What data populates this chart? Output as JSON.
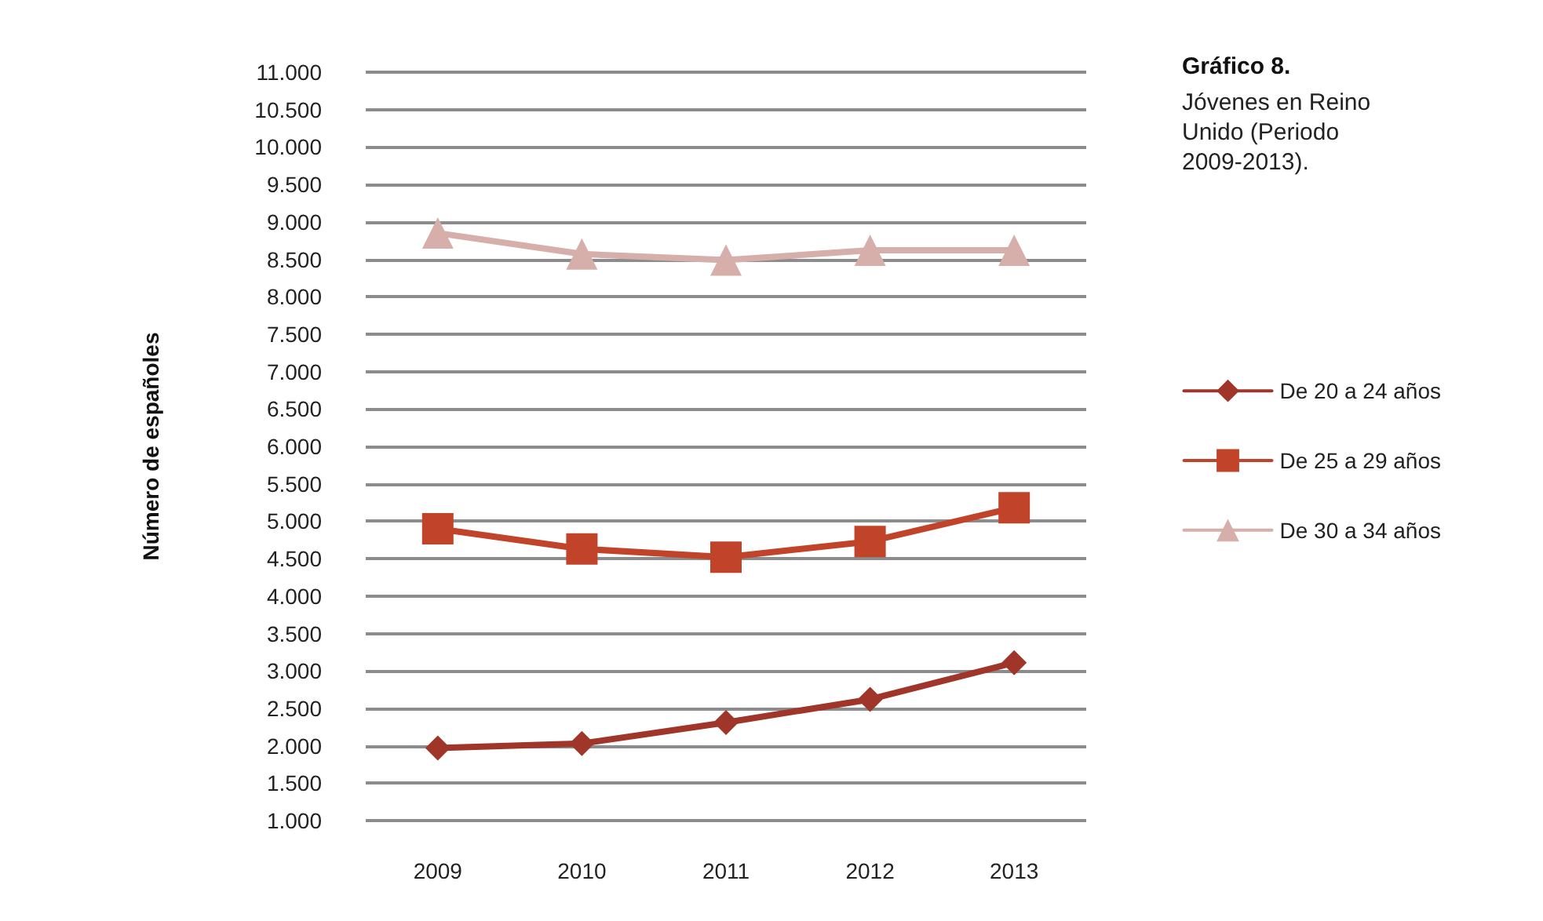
{
  "chart_data": {
    "type": "line",
    "title": "Gráfico 8.",
    "subtitle": "Jóvenes en Reino Unido (Periodo 2009-2013).",
    "ylabel": "Número de españoles",
    "categories": [
      "2009",
      "2010",
      "2011",
      "2012",
      "2013"
    ],
    "series": [
      {
        "name": "De 20 a 24 años",
        "color": "#a0352a",
        "marker": "diamond",
        "values": [
          1970,
          2030,
          2310,
          2620,
          3110
        ]
      },
      {
        "name": "De 25 a 29 años",
        "color": "#c0432a",
        "marker": "square",
        "values": [
          4900,
          4630,
          4520,
          4730,
          5180
        ]
      },
      {
        "name": "De 30 a 34 años",
        "color": "#d6aeaa",
        "marker": "triangle",
        "values": [
          8850,
          8570,
          8490,
          8620,
          8620
        ]
      }
    ],
    "ylim": [
      1000,
      11000
    ],
    "yticks": [
      {
        "value": 1000,
        "label": "1.000"
      },
      {
        "value": 1500,
        "label": "1.500"
      },
      {
        "value": 2000,
        "label": "2.000"
      },
      {
        "value": 2500,
        "label": "2.500"
      },
      {
        "value": 3000,
        "label": "3.000"
      },
      {
        "value": 3500,
        "label": "3.500"
      },
      {
        "value": 4000,
        "label": "4.000"
      },
      {
        "value": 4500,
        "label": "4.500"
      },
      {
        "value": 5000,
        "label": "5.000"
      },
      {
        "value": 5500,
        "label": "5.500"
      },
      {
        "value": 6000,
        "label": "6.000"
      },
      {
        "value": 6500,
        "label": "6.500"
      },
      {
        "value": 7000,
        "label": "7.000"
      },
      {
        "value": 7500,
        "label": "7.500"
      },
      {
        "value": 8000,
        "label": "8.000"
      },
      {
        "value": 8500,
        "label": "8.500"
      },
      {
        "value": 9000,
        "label": "9.000"
      },
      {
        "value": 9500,
        "label": "9.500"
      },
      {
        "value": 10000,
        "label": "10.000"
      },
      {
        "value": 10500,
        "label": "10.500"
      },
      {
        "value": 11000,
        "label": "11.000"
      }
    ],
    "grid": "y",
    "legend": "right",
    "line_style": "solid"
  }
}
